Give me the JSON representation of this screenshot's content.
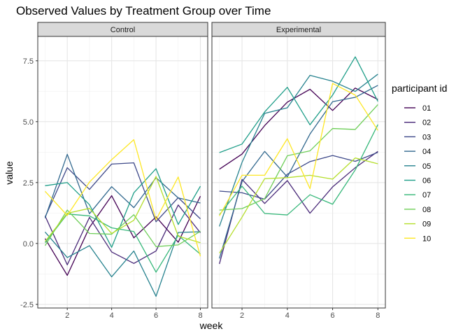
{
  "chart_data": {
    "type": "line",
    "title": "Observed Values by Treatment Group over Time",
    "xlabel": "week",
    "ylabel": "value",
    "xlim": [
      0.67,
      8.33
    ],
    "ylim": [
      -2.65,
      8.5
    ],
    "x_ticks": [
      2,
      4,
      6,
      8
    ],
    "y_ticks": [
      -2.5,
      0.0,
      2.5,
      5.0,
      7.5
    ],
    "y_tick_labels": [
      "-2.5",
      "0.0",
      "2.5",
      "5.0",
      "7.5"
    ],
    "x": [
      1,
      2,
      3,
      4,
      5,
      6,
      7,
      8
    ],
    "grid": true,
    "legend": {
      "title": "participant id",
      "placement": "right",
      "entries": [
        "01",
        "02",
        "03",
        "04",
        "05",
        "06",
        "07",
        "08",
        "09",
        "10"
      ]
    },
    "colors": [
      "#440154",
      "#482878",
      "#3e4989",
      "#31688e",
      "#26828e",
      "#1f9e89",
      "#35b779",
      "#6ece58",
      "#b5de2b",
      "#fde725"
    ],
    "facets": [
      {
        "name": "Control",
        "series": [
          {
            "name": "01",
            "values": [
              0.2,
              -1.31,
              0.66,
              1.96,
              0.23,
              1.09,
              0.05,
              1.94
            ]
          },
          {
            "name": "02",
            "values": [
              1.13,
              -0.88,
              1.07,
              -0.35,
              -0.82,
              -0.31,
              1.58,
              0.44
            ]
          },
          {
            "name": "03",
            "values": [
              1.08,
              3.11,
              2.22,
              3.26,
              3.31,
              0.89,
              1.88,
              1.01
            ]
          },
          {
            "name": "04",
            "values": [
              1.04,
              3.66,
              1.22,
              2.33,
              1.47,
              2.7,
              1.87,
              1.66
            ]
          },
          {
            "name": "05",
            "values": [
              0.47,
              -0.58,
              -0.09,
              -1.37,
              -0.31,
              -2.17,
              0.45,
              0.48
            ]
          },
          {
            "name": "06",
            "values": [
              2.37,
              2.5,
              1.59,
              -0.16,
              2.08,
              3.07,
              0.78,
              2.35
            ]
          },
          {
            "name": "07",
            "values": [
              0.03,
              1.21,
              1.13,
              0.64,
              0.49,
              -1.18,
              0.33,
              -0.44
            ]
          },
          {
            "name": "08",
            "values": [
              -0.09,
              1.37,
              0.41,
              0.38,
              1.18,
              -0.13,
              -0.06,
              0.5
            ]
          },
          {
            "name": "09",
            "values": [
              0.08,
              1.24,
              1.44,
              0.41,
              0.95,
              2.75,
              0.3,
              0.03
            ]
          },
          {
            "name": "10",
            "values": [
              2.14,
              1.15,
              2.52,
              3.44,
              4.26,
              0.97,
              2.73,
              -0.53
            ]
          }
        ]
      },
      {
        "name": "Experimental",
        "series": [
          {
            "name": "01",
            "values": [
              3.05,
              3.67,
              4.84,
              5.8,
              6.33,
              5.46,
              6.38,
              5.91
            ]
          },
          {
            "name": "02",
            "values": [
              -0.84,
              2.63,
              1.64,
              2.58,
              1.24,
              2.32,
              3.11,
              3.78
            ]
          },
          {
            "name": "03",
            "values": [
              2.15,
              2.08,
              1.82,
              2.84,
              3.36,
              3.61,
              3.37,
              3.74
            ]
          },
          {
            "name": "04",
            "values": [
              -0.62,
              2.54,
              3.78,
              2.73,
              4.49,
              5.82,
              6.0,
              6.49
            ]
          },
          {
            "name": "05",
            "values": [
              0.7,
              3.33,
              5.34,
              5.57,
              6.9,
              6.66,
              6.24,
              6.95
            ]
          },
          {
            "name": "06",
            "values": [
              3.73,
              4.08,
              5.4,
              6.41,
              4.87,
              6.09,
              7.66,
              5.83
            ]
          },
          {
            "name": "07",
            "values": [
              1.18,
              2.35,
              1.23,
              1.17,
              2.0,
              1.61,
              3.02,
              4.88
            ]
          },
          {
            "name": "08",
            "values": [
              1.37,
              1.43,
              1.84,
              3.6,
              3.8,
              4.72,
              4.68,
              5.7
            ]
          },
          {
            "name": "09",
            "values": [
              -0.4,
              1.08,
              2.66,
              2.7,
              2.8,
              2.64,
              3.51,
              3.27
            ]
          },
          {
            "name": "10",
            "values": [
              1.13,
              2.8,
              2.8,
              4.3,
              2.25,
              6.57,
              6.09,
              4.64
            ]
          }
        ]
      }
    ]
  }
}
